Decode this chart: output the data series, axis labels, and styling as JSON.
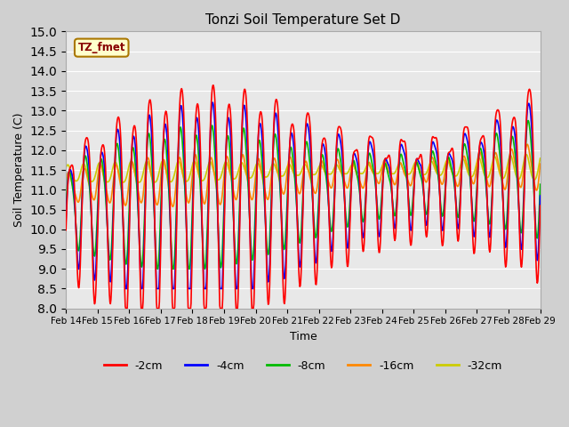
{
  "title": "Tonzi Soil Temperature Set D",
  "xlabel": "Time",
  "ylabel": "Soil Temperature (C)",
  "ylim": [
    8.0,
    15.0
  ],
  "yticks": [
    8.0,
    8.5,
    9.0,
    9.5,
    10.0,
    10.5,
    11.0,
    11.5,
    12.0,
    12.5,
    13.0,
    13.5,
    14.0,
    14.5,
    15.0
  ],
  "xtick_labels": [
    "Feb 14",
    "Feb 15",
    "Feb 16",
    "Feb 17",
    "Feb 18",
    "Feb 19",
    "Feb 20",
    "Feb 21",
    "Feb 22",
    "Feb 23",
    "Feb 24",
    "Feb 25",
    "Feb 26",
    "Feb 27",
    "Feb 28",
    "Feb 29"
  ],
  "annotation_text": "TZ_fmet",
  "legend_labels": [
    "-2cm",
    "-4cm",
    "-8cm",
    "-16cm",
    "-32cm"
  ],
  "line_colors": [
    "#ff0000",
    "#0000ff",
    "#00bb00",
    "#ff8800",
    "#cccc00"
  ],
  "fig_bg": "#d0d0d0",
  "plot_bg": "#e8e8e8"
}
